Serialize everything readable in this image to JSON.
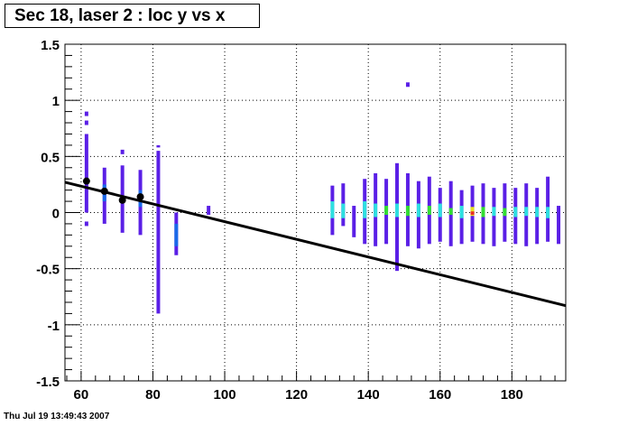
{
  "title": "Sec 18, laser 2 : loc y vs x",
  "footer_timestamp": "Thu Jul 19 13:49:43 2007",
  "chart_data": {
    "type": "heatmap",
    "title": "Sec 18, laser 2 : loc y vs x",
    "xlabel": "",
    "ylabel": "",
    "xlim": [
      55.5,
      195
    ],
    "ylim": [
      -1.5,
      1.5
    ],
    "grid": true,
    "x_ticks": [
      {
        "value": 60,
        "label": "60"
      },
      {
        "value": 80,
        "label": "80"
      },
      {
        "value": 100,
        "label": "100"
      },
      {
        "value": 120,
        "label": "120"
      },
      {
        "value": 140,
        "label": "140"
      },
      {
        "value": 160,
        "label": "160"
      },
      {
        "value": 180,
        "label": "180"
      }
    ],
    "y_ticks": [
      {
        "value": 1.5,
        "label": "1.5"
      },
      {
        "value": 1,
        "label": "1"
      },
      {
        "value": 0.5,
        "label": "0.5"
      },
      {
        "value": 0,
        "label": "0"
      },
      {
        "value": -0.5,
        "label": "-0.5"
      },
      {
        "value": -1,
        "label": "-1"
      },
      {
        "value": -1.5,
        "label": "-1.5"
      }
    ],
    "bin_width_x": 1.0,
    "palette": {
      "low": "#5a1fe6",
      "mid": "#1a6ae8",
      "cyan": "#2ee0e0",
      "green": "#33dd33",
      "yellow": "#e8e020",
      "red": "#e83020"
    },
    "columns": [
      {
        "x": 61.5,
        "segments": [
          [
            -0.12,
            -0.08,
            "low"
          ],
          [
            0.0,
            0.7,
            "low"
          ],
          [
            0.78,
            0.82,
            "low"
          ],
          [
            0.86,
            0.9,
            "low"
          ]
        ]
      },
      {
        "x": 66.5,
        "segments": [
          [
            -0.1,
            0.4,
            "low"
          ],
          [
            0.1,
            0.25,
            "mid"
          ]
        ]
      },
      {
        "x": 71.5,
        "segments": [
          [
            -0.18,
            0.42,
            "low"
          ],
          [
            0.52,
            0.56,
            "low"
          ]
        ]
      },
      {
        "x": 76.5,
        "segments": [
          [
            -0.2,
            0.38,
            "low"
          ],
          [
            0.05,
            0.2,
            "mid"
          ]
        ]
      },
      {
        "x": 81.5,
        "segments": [
          [
            -0.9,
            0.55,
            "low"
          ],
          [
            0.58,
            0.6,
            "low"
          ]
        ]
      },
      {
        "x": 86.5,
        "segments": [
          [
            -0.38,
            0.0,
            "low"
          ],
          [
            -0.3,
            -0.1,
            "mid"
          ]
        ]
      },
      {
        "x": 95.5,
        "segments": [
          [
            -0.02,
            0.06,
            "low"
          ]
        ]
      },
      {
        "x": 130,
        "segments": [
          [
            -0.2,
            0.24,
            "low"
          ],
          [
            -0.05,
            0.1,
            "cyan"
          ]
        ]
      },
      {
        "x": 133,
        "segments": [
          [
            -0.12,
            0.26,
            "low"
          ],
          [
            -0.05,
            0.08,
            "cyan"
          ]
        ]
      },
      {
        "x": 136,
        "segments": [
          [
            -0.22,
            0.06,
            "low"
          ]
        ]
      },
      {
        "x": 139,
        "segments": [
          [
            -0.28,
            0.3,
            "low"
          ],
          [
            -0.05,
            0.1,
            "cyan"
          ]
        ]
      },
      {
        "x": 142,
        "segments": [
          [
            -0.3,
            0.35,
            "low"
          ],
          [
            -0.04,
            0.08,
            "cyan"
          ]
        ]
      },
      {
        "x": 145,
        "segments": [
          [
            -0.28,
            0.3,
            "low"
          ],
          [
            -0.02,
            0.06,
            "green"
          ]
        ]
      },
      {
        "x": 148,
        "segments": [
          [
            -0.52,
            0.44,
            "low"
          ],
          [
            -0.04,
            0.08,
            "cyan"
          ]
        ]
      },
      {
        "x": 151,
        "segments": [
          [
            -0.3,
            0.35,
            "low"
          ],
          [
            -0.03,
            0.06,
            "green"
          ],
          [
            1.12,
            1.16,
            "low"
          ]
        ]
      },
      {
        "x": 154,
        "segments": [
          [
            -0.32,
            0.28,
            "low"
          ],
          [
            -0.04,
            0.08,
            "cyan"
          ]
        ]
      },
      {
        "x": 157,
        "segments": [
          [
            -0.28,
            0.32,
            "low"
          ],
          [
            -0.02,
            0.06,
            "green"
          ]
        ]
      },
      {
        "x": 160,
        "segments": [
          [
            -0.26,
            0.22,
            "low"
          ],
          [
            -0.04,
            0.08,
            "cyan"
          ]
        ]
      },
      {
        "x": 163,
        "segments": [
          [
            -0.3,
            0.28,
            "low"
          ],
          [
            -0.02,
            0.04,
            "green"
          ]
        ]
      },
      {
        "x": 166,
        "segments": [
          [
            -0.28,
            0.2,
            "low"
          ],
          [
            -0.05,
            0.06,
            "cyan"
          ]
        ]
      },
      {
        "x": 169,
        "segments": [
          [
            -0.26,
            0.24,
            "low"
          ],
          [
            -0.03,
            0.05,
            "yellow"
          ],
          [
            -0.02,
            0.01,
            "red"
          ]
        ]
      },
      {
        "x": 172,
        "segments": [
          [
            -0.28,
            0.26,
            "low"
          ],
          [
            -0.04,
            0.05,
            "green"
          ]
        ]
      },
      {
        "x": 175,
        "segments": [
          [
            -0.3,
            0.22,
            "low"
          ],
          [
            -0.03,
            0.05,
            "cyan"
          ]
        ]
      },
      {
        "x": 178,
        "segments": [
          [
            -0.26,
            0.26,
            "low"
          ],
          [
            -0.03,
            0.04,
            "green"
          ]
        ]
      },
      {
        "x": 181,
        "segments": [
          [
            -0.28,
            0.22,
            "low"
          ],
          [
            -0.04,
            0.05,
            "cyan"
          ]
        ]
      },
      {
        "x": 184,
        "segments": [
          [
            -0.3,
            0.26,
            "low"
          ],
          [
            -0.03,
            0.05,
            "cyan"
          ]
        ]
      },
      {
        "x": 187,
        "segments": [
          [
            -0.28,
            0.22,
            "low"
          ],
          [
            -0.04,
            0.05,
            "cyan"
          ]
        ]
      },
      {
        "x": 190,
        "segments": [
          [
            -0.26,
            0.32,
            "low"
          ],
          [
            -0.05,
            0.05,
            "cyan"
          ]
        ]
      },
      {
        "x": 193,
        "segments": [
          [
            -0.28,
            0.06,
            "low"
          ]
        ]
      }
    ],
    "profile_points": [
      {
        "x": 61.5,
        "y": 0.28
      },
      {
        "x": 66.5,
        "y": 0.19
      },
      {
        "x": 71.5,
        "y": 0.11
      },
      {
        "x": 76.5,
        "y": 0.14
      }
    ],
    "fit_line": {
      "x": [
        55.5,
        195
      ],
      "y": [
        0.27,
        -0.83
      ],
      "color": "#000000"
    }
  }
}
